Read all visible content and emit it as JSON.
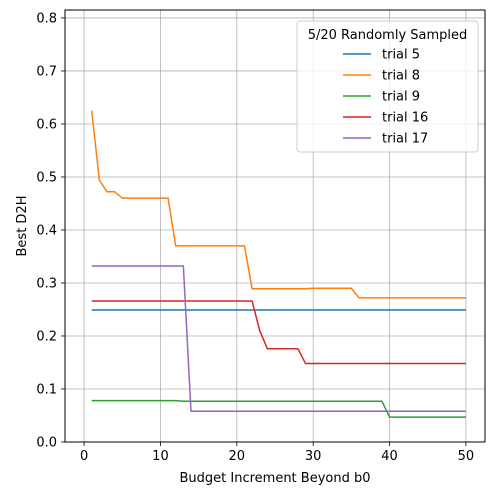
{
  "chart_data": {
    "type": "line",
    "xlabel": "Budget Increment Beyond b0",
    "ylabel": "Best D2H",
    "xlim": [
      -2.5,
      52.5
    ],
    "ylim": [
      0,
      0.815
    ],
    "xticks": [
      0,
      10,
      20,
      30,
      40,
      50
    ],
    "yticks": [
      0.0,
      0.1,
      0.2,
      0.3,
      0.4,
      0.5,
      0.6,
      0.7,
      0.8
    ],
    "xtick_labels": [
      "0",
      "10",
      "20",
      "30",
      "40",
      "50"
    ],
    "ytick_labels": [
      "0.0",
      "0.1",
      "0.2",
      "0.3",
      "0.4",
      "0.5",
      "0.6",
      "0.7",
      "0.8"
    ],
    "grid": true,
    "legend_title": "5/20 Randomly Sampled",
    "legend_position": "top-right",
    "series": [
      {
        "name": "trial 5",
        "color": "#1f77b4",
        "points": [
          [
            1,
            0.249
          ],
          [
            50,
            0.249
          ]
        ]
      },
      {
        "name": "trial 8",
        "color": "#ff7f0e",
        "points": [
          [
            1,
            0.625
          ],
          [
            2,
            0.494
          ],
          [
            3,
            0.472
          ],
          [
            4,
            0.472
          ],
          [
            5,
            0.46
          ],
          [
            11,
            0.46
          ],
          [
            12,
            0.37
          ],
          [
            21,
            0.37
          ],
          [
            22,
            0.289
          ],
          [
            29,
            0.289
          ],
          [
            30,
            0.29
          ],
          [
            35,
            0.29
          ],
          [
            36,
            0.272
          ],
          [
            50,
            0.272
          ]
        ]
      },
      {
        "name": "trial 9",
        "color": "#2ca02c",
        "points": [
          [
            1,
            0.078
          ],
          [
            12,
            0.078
          ],
          [
            13,
            0.077
          ],
          [
            39,
            0.077
          ],
          [
            40,
            0.047
          ],
          [
            50,
            0.047
          ]
        ]
      },
      {
        "name": "trial 16",
        "color": "#d62728",
        "points": [
          [
            1,
            0.266
          ],
          [
            22,
            0.266
          ],
          [
            23,
            0.21
          ],
          [
            24,
            0.176
          ],
          [
            28,
            0.176
          ],
          [
            29,
            0.148
          ],
          [
            50,
            0.148
          ]
        ]
      },
      {
        "name": "trial 17",
        "color": "#9467bd",
        "points": [
          [
            1,
            0.332
          ],
          [
            13,
            0.332
          ],
          [
            14,
            0.058
          ],
          [
            50,
            0.058
          ]
        ]
      }
    ]
  }
}
